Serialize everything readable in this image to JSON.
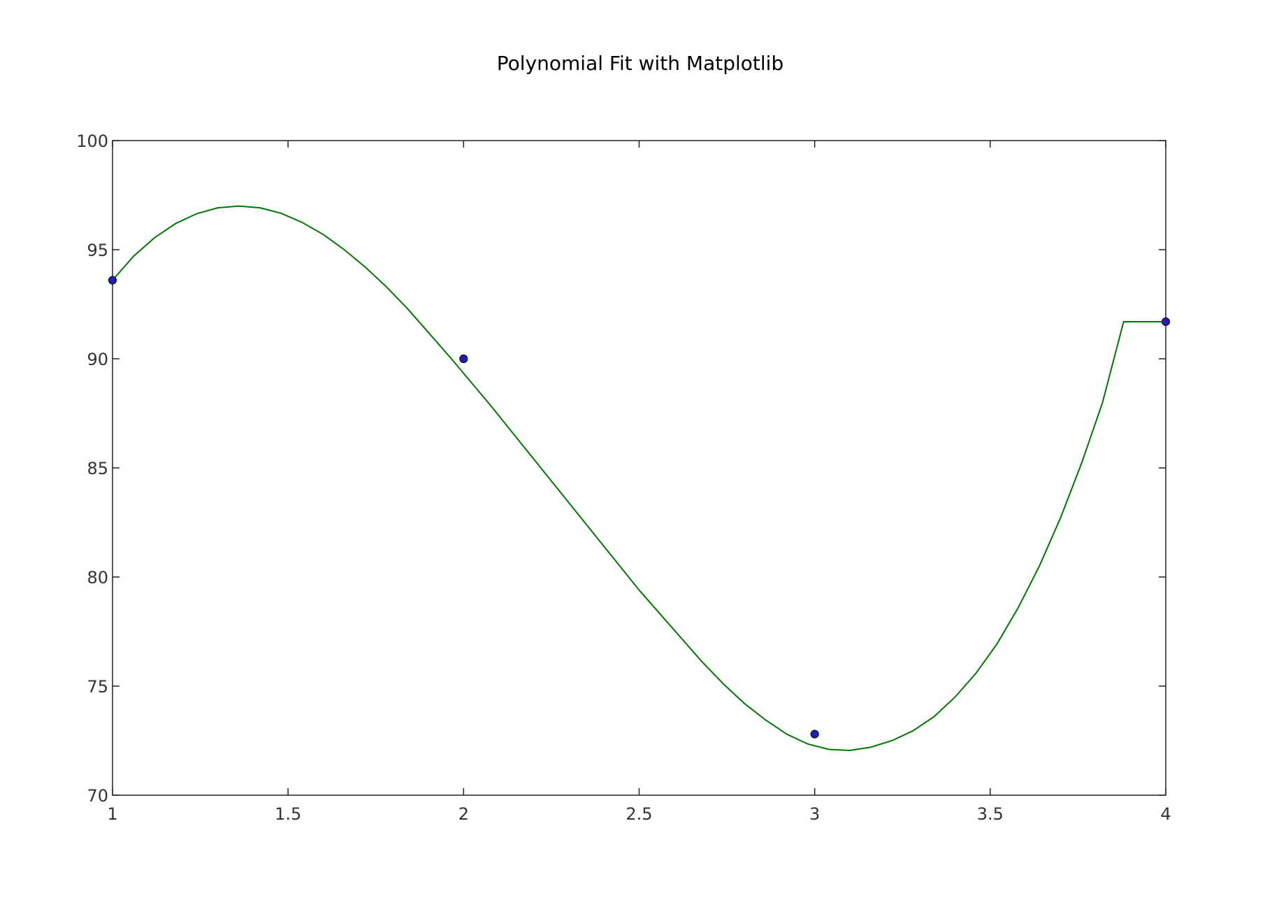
{
  "chart_data": {
    "type": "line",
    "title": "Polynomial Fit with Matplotlib",
    "xlabel": "",
    "ylabel": "",
    "xlim": [
      1,
      4
    ],
    "ylim": [
      70,
      100
    ],
    "xticks": [
      1,
      1.5,
      2,
      2.5,
      3,
      3.5,
      4
    ],
    "xtick_labels": [
      "1",
      "1.5",
      "2",
      "2.5",
      "3",
      "3.5",
      "4"
    ],
    "yticks": [
      70,
      75,
      80,
      85,
      90,
      95,
      100
    ],
    "ytick_labels": [
      "70",
      "75",
      "80",
      "85",
      "90",
      "95",
      "100"
    ],
    "grid": false,
    "legend": "none",
    "series": [
      {
        "type": "scatter",
        "x": [
          1,
          2,
          3,
          4
        ],
        "y": [
          93.6,
          90.0,
          72.8,
          91.7
        ],
        "color": "#1f1fbf"
      },
      {
        "type": "line",
        "color": "#007700",
        "x": [
          1.0,
          1.06,
          1.12,
          1.18,
          1.24,
          1.3,
          1.36,
          1.42,
          1.48,
          1.54,
          1.6,
          1.66,
          1.72,
          1.78,
          1.84,
          1.9,
          1.96,
          2.02,
          2.08,
          2.14,
          2.2,
          2.26,
          2.32,
          2.38,
          2.44,
          2.5,
          2.56,
          2.62,
          2.68,
          2.74,
          2.8,
          2.86,
          2.92,
          2.98,
          3.04,
          3.1,
          3.16,
          3.22,
          3.28,
          3.34,
          3.4,
          3.46,
          3.52,
          3.58,
          3.64,
          3.7,
          3.76,
          3.82,
          3.88,
          3.94,
          4.0
        ],
        "y": [
          93.6,
          94.7,
          95.55,
          96.2,
          96.65,
          96.92,
          97.0,
          96.92,
          96.67,
          96.25,
          95.7,
          95.0,
          94.2,
          93.3,
          92.3,
          91.2,
          90.1,
          88.95,
          87.8,
          86.6,
          85.4,
          84.2,
          83.0,
          81.8,
          80.6,
          79.4,
          78.3,
          77.2,
          76.1,
          75.1,
          74.2,
          73.45,
          72.8,
          72.35,
          72.1,
          72.05,
          72.2,
          72.5,
          72.95,
          73.6,
          74.5,
          75.6,
          76.95,
          78.6,
          80.5,
          82.7,
          85.2,
          88.0,
          91.7,
          91.7,
          91.7
        ]
      }
    ]
  }
}
